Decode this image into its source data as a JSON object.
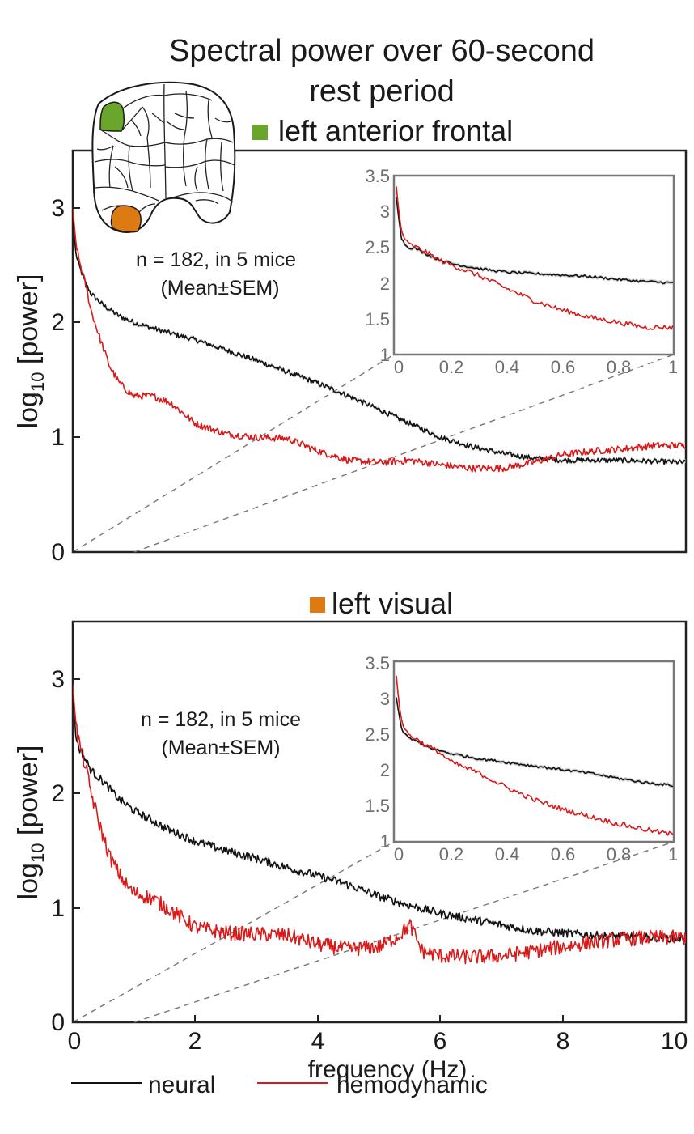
{
  "figure": {
    "title_line1": "Spectral power over 60-second",
    "title_line2": "rest period",
    "xlabel": "frequency (Hz)",
    "ylabel_main": "log",
    "ylabel_sub": "10",
    "ylabel_rest": " [power]",
    "legend": [
      {
        "label": "neural",
        "color": "#111111"
      },
      {
        "label": "hemodynamic",
        "color": "#d91a1a"
      }
    ],
    "brain_regions": [
      {
        "name": "left anterior frontal",
        "color": "#6aa62c"
      },
      {
        "name": "left visual",
        "color": "#de7a12"
      }
    ]
  },
  "chart_data": [
    {
      "type": "line",
      "title": "left anterior frontal",
      "marker_color": "#6aa62c",
      "annotation_line1": "n = 182, in 5 mice",
      "annotation_line2": "(Mean±SEM)",
      "xlabel": "",
      "ylabel": "log10 [power]",
      "xlim": [
        0,
        10
      ],
      "ylim": [
        0,
        3.5
      ],
      "yticks": [
        "0",
        "1",
        "2",
        "3"
      ],
      "series": [
        {
          "name": "neural",
          "color": "#111111",
          "x": [
            0,
            0.05,
            0.1,
            0.2,
            0.3,
            0.5,
            0.75,
            1,
            1.5,
            2,
            2.5,
            3,
            3.5,
            4,
            4.5,
            5,
            5.5,
            6,
            6.5,
            7,
            7.5,
            8,
            8.5,
            9,
            9.5,
            10
          ],
          "y": [
            2.92,
            2.6,
            2.5,
            2.35,
            2.25,
            2.15,
            2.06,
            2.0,
            1.92,
            1.85,
            1.76,
            1.67,
            1.57,
            1.47,
            1.36,
            1.24,
            1.12,
            1.0,
            0.92,
            0.86,
            0.82,
            0.8,
            0.8,
            0.8,
            0.79,
            0.78
          ]
        },
        {
          "name": "hemodynamic",
          "color": "#d91a1a",
          "x": [
            0,
            0.05,
            0.1,
            0.2,
            0.3,
            0.45,
            0.6,
            0.75,
            0.9,
            1.0,
            1.3,
            1.6,
            2,
            2.5,
            3,
            3.5,
            4,
            4.5,
            5,
            5.5,
            6,
            6.5,
            7,
            7.5,
            8,
            8.5,
            9,
            9.5,
            10
          ],
          "y": [
            3.0,
            2.7,
            2.55,
            2.35,
            2.1,
            1.85,
            1.62,
            1.48,
            1.4,
            1.36,
            1.36,
            1.3,
            1.12,
            1.03,
            1.0,
            0.99,
            0.88,
            0.8,
            0.78,
            0.8,
            0.76,
            0.73,
            0.73,
            0.78,
            0.85,
            0.88,
            0.9,
            0.93,
            0.93
          ]
        }
      ],
      "inset": {
        "xlim": [
          0,
          1
        ],
        "ylim": [
          1,
          3.5
        ],
        "xticks": [
          "0",
          "0.2",
          "0.4",
          "0.6",
          "0.8",
          "1"
        ],
        "yticks": [
          "1",
          "1.5",
          "2",
          "2.5",
          "3",
          "3.5"
        ],
        "series": [
          {
            "name": "neural",
            "x": [
              0,
              0.01,
              0.02,
              0.04,
              0.07,
              0.1,
              0.15,
              0.2,
              0.3,
              0.4,
              0.5,
              0.6,
              0.7,
              0.8,
              0.9,
              1.0
            ],
            "y": [
              3.2,
              2.85,
              2.6,
              2.5,
              2.48,
              2.42,
              2.33,
              2.27,
              2.2,
              2.15,
              2.13,
              2.11,
              2.09,
              2.05,
              2.02,
              2.0
            ]
          },
          {
            "name": "hemodynamic",
            "x": [
              0,
              0.01,
              0.02,
              0.04,
              0.07,
              0.1,
              0.15,
              0.2,
              0.3,
              0.4,
              0.5,
              0.6,
              0.7,
              0.8,
              0.9,
              1.0
            ],
            "y": [
              3.35,
              2.95,
              2.7,
              2.55,
              2.5,
              2.45,
              2.33,
              2.25,
              2.1,
              1.92,
              1.75,
              1.62,
              1.52,
              1.45,
              1.38,
              1.38
            ]
          }
        ]
      }
    },
    {
      "type": "line",
      "title": "left visual",
      "marker_color": "#de7a12",
      "annotation_line1": "n = 182, in 5 mice",
      "annotation_line2": "(Mean±SEM)",
      "xlabel": "frequency (Hz)",
      "ylabel": "log10 [power]",
      "xlim": [
        0,
        10
      ],
      "ylim": [
        0,
        3.5
      ],
      "xticks": [
        "0",
        "2",
        "4",
        "6",
        "8",
        "10"
      ],
      "yticks": [
        "0",
        "1",
        "2",
        "3"
      ],
      "series": [
        {
          "name": "neural",
          "color": "#111111",
          "x": [
            0,
            0.05,
            0.1,
            0.2,
            0.3,
            0.5,
            0.75,
            1,
            1.5,
            2,
            2.5,
            3,
            3.5,
            4,
            4.5,
            5,
            5.5,
            6,
            6.5,
            7,
            7.5,
            8,
            8.5,
            9,
            9.5,
            10
          ],
          "y": [
            2.9,
            2.5,
            2.4,
            2.3,
            2.2,
            2.1,
            1.95,
            1.85,
            1.7,
            1.58,
            1.5,
            1.43,
            1.35,
            1.28,
            1.2,
            1.1,
            1.02,
            0.95,
            0.9,
            0.85,
            0.8,
            0.78,
            0.76,
            0.75,
            0.74,
            0.73
          ]
        },
        {
          "name": "hemodynamic",
          "color": "#d91a1a",
          "x": [
            0,
            0.05,
            0.1,
            0.2,
            0.3,
            0.45,
            0.6,
            0.75,
            0.9,
            1.0,
            1.3,
            1.6,
            2,
            2.5,
            3,
            3.5,
            4,
            4.5,
            5,
            5.3,
            5.5,
            5.7,
            6,
            6.5,
            7,
            7.5,
            8,
            8.5,
            9,
            9.5,
            10
          ],
          "y": [
            2.95,
            2.6,
            2.45,
            2.25,
            2.0,
            1.7,
            1.45,
            1.3,
            1.18,
            1.13,
            1.08,
            0.98,
            0.83,
            0.78,
            0.77,
            0.76,
            0.68,
            0.64,
            0.66,
            0.75,
            0.85,
            0.62,
            0.58,
            0.57,
            0.58,
            0.62,
            0.66,
            0.7,
            0.73,
            0.74,
            0.74
          ]
        }
      ],
      "inset": {
        "xlim": [
          0,
          1
        ],
        "ylim": [
          1,
          3.5
        ],
        "xticks": [
          "0",
          "0.2",
          "0.4",
          "0.6",
          "0.8",
          "1"
        ],
        "yticks": [
          "1",
          "1.5",
          "2",
          "2.5",
          "3",
          "3.5"
        ],
        "series": [
          {
            "name": "neural",
            "x": [
              0,
              0.01,
              0.02,
              0.04,
              0.07,
              0.1,
              0.15,
              0.2,
              0.3,
              0.4,
              0.5,
              0.6,
              0.7,
              0.8,
              0.9,
              1.0
            ],
            "y": [
              3.0,
              2.75,
              2.55,
              2.45,
              2.4,
              2.33,
              2.27,
              2.22,
              2.15,
              2.1,
              2.05,
              2.0,
              1.95,
              1.88,
              1.82,
              1.78
            ]
          },
          {
            "name": "hemodynamic",
            "x": [
              0,
              0.01,
              0.02,
              0.04,
              0.07,
              0.1,
              0.15,
              0.2,
              0.3,
              0.4,
              0.5,
              0.6,
              0.7,
              0.8,
              0.9,
              1.0
            ],
            "y": [
              3.3,
              2.9,
              2.65,
              2.5,
              2.43,
              2.35,
              2.25,
              2.1,
              1.95,
              1.75,
              1.58,
              1.45,
              1.35,
              1.25,
              1.17,
              1.1
            ]
          }
        ]
      }
    }
  ]
}
